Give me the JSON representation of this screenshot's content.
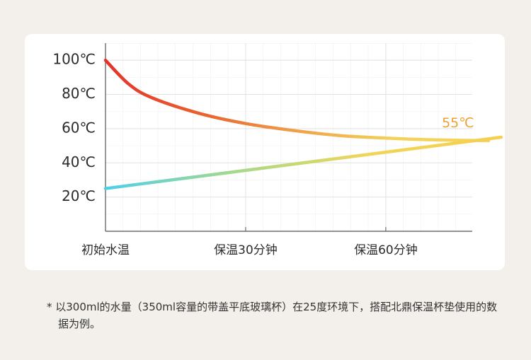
{
  "chart_data": {
    "type": "line",
    "xlim": [
      0,
      78.5
    ],
    "xticks": [
      {
        "value": 0,
        "label": "初始水温"
      },
      {
        "value": 30,
        "label": "保温30分钟"
      },
      {
        "value": 60,
        "label": "保温60分钟"
      }
    ],
    "ylim": [
      0,
      110
    ],
    "yticks": [
      {
        "value": 20,
        "label": "20℃"
      },
      {
        "value": 40,
        "label": "40℃"
      },
      {
        "value": 60,
        "label": "60℃"
      },
      {
        "value": 80,
        "label": "80℃"
      },
      {
        "value": 100,
        "label": "100℃"
      }
    ],
    "grid": true,
    "series": [
      {
        "color": "#e5322a",
        "gradient": [
          "#e5322a",
          "#e8622f",
          "#f0a14a",
          "#f3d25a",
          "#f5d55a"
        ],
        "x": [
          0,
          5,
          10,
          20,
          30,
          40,
          50,
          60,
          70,
          82
        ],
        "values": [
          100,
          86,
          78,
          69,
          63,
          59,
          56,
          54.5,
          53.5,
          53
        ]
      },
      {
        "color": "#4dd0e8",
        "gradient": [
          "#4dd0e8",
          "#a8d98a",
          "#f0d658",
          "#f5cf50"
        ],
        "x": [
          0,
          84.7
        ],
        "values": [
          25,
          55
        ]
      }
    ],
    "annotation": {
      "text": "55℃",
      "x": 72,
      "y": 63,
      "color": "#f0a030"
    },
    "footnote": "* 以300ml的水量（350ml容量的带盖平底玻璃杯）在25度环境下，搭配北鼎保温杯垫使用的数据为例。"
  }
}
